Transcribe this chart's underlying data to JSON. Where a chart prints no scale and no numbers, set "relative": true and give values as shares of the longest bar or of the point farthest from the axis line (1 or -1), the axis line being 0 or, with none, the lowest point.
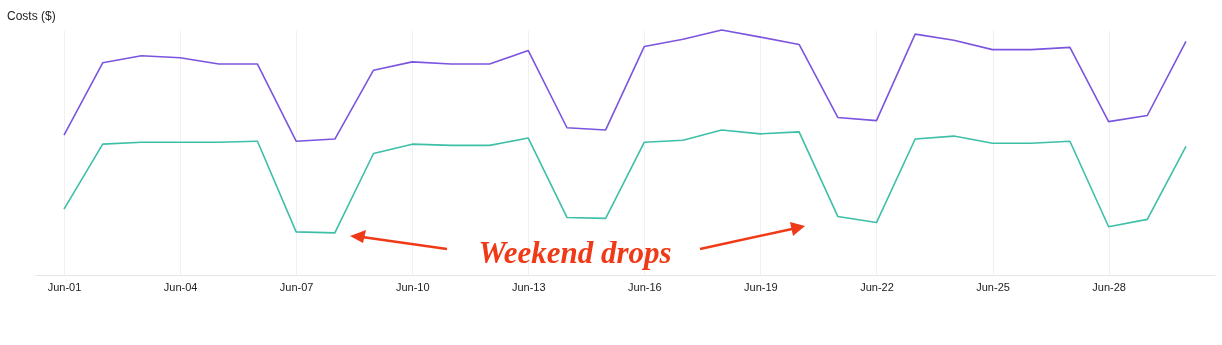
{
  "chart_data": {
    "type": "line",
    "ylabel": "Costs ($)",
    "relative": true,
    "grid": "x",
    "x": [
      "--06-01",
      "--06-02",
      "--06-03",
      "--06-04",
      "--06-05",
      "--06-06",
      "--06-07",
      "--06-08",
      "--06-09",
      "--06-10",
      "--06-11",
      "--06-12",
      "--06-13",
      "--06-14",
      "--06-15",
      "--06-16",
      "--06-17",
      "--06-18",
      "--06-19",
      "--06-20",
      "--06-21",
      "--06-22",
      "--06-23",
      "--06-24",
      "--06-25",
      "--06-26",
      "--06-27",
      "--06-28",
      "--06-29",
      "--06-30"
    ],
    "xlim": [
      "--05-31T06:00",
      "--06-30T18:00"
    ],
    "xticks": [
      {
        "value": "--06-01",
        "label": "Jun-01"
      },
      {
        "value": "--06-04",
        "label": "Jun-04"
      },
      {
        "value": "--06-07",
        "label": "Jun-07"
      },
      {
        "value": "--06-10",
        "label": "Jun-10"
      },
      {
        "value": "--06-13",
        "label": "Jun-13"
      },
      {
        "value": "--06-16",
        "label": "Jun-16"
      },
      {
        "value": "--06-19",
        "label": "Jun-19"
      },
      {
        "value": "--06-22",
        "label": "Jun-22"
      },
      {
        "value": "--06-25",
        "label": "Jun-25"
      },
      {
        "value": "--06-28",
        "label": "Jun-28"
      }
    ],
    "series": [
      {
        "color": "#7b55e0",
        "values": [
          0.571,
          0.866,
          0.895,
          0.887,
          0.861,
          0.861,
          0.546,
          0.555,
          0.836,
          0.87,
          0.861,
          0.861,
          0.916,
          0.601,
          0.592,
          0.933,
          0.962,
          1,
          0.971,
          0.941,
          0.643,
          0.63,
          0.983,
          0.958,
          0.92,
          0.92,
          0.929,
          0.626,
          0.651,
          0.954
        ]
      },
      {
        "color": "#3dbfa8",
        "values": [
          0.269,
          0.534,
          0.542,
          0.542,
          0.542,
          0.546,
          0.176,
          0.172,
          0.496,
          0.534,
          0.529,
          0.529,
          0.559,
          0.235,
          0.231,
          0.542,
          0.55,
          0.592,
          0.576,
          0.584,
          0.239,
          0.214,
          0.555,
          0.567,
          0.538,
          0.538,
          0.546,
          0.197,
          0.227,
          0.525
        ]
      }
    ],
    "annotations": [
      "Weekend drops"
    ]
  }
}
